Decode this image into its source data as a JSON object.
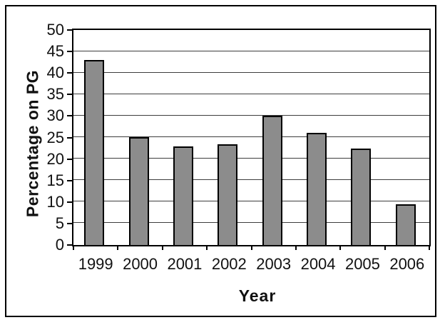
{
  "chart_data": {
    "type": "bar",
    "title": "",
    "xlabel": "Year",
    "ylabel": "Percentage on PG",
    "categories": [
      "1999",
      "2000",
      "2001",
      "2002",
      "2003",
      "2004",
      "2005",
      "2006"
    ],
    "values": [
      43,
      25,
      23,
      23.5,
      30,
      26,
      22.5,
      9.5
    ],
    "ylim": [
      0,
      50
    ],
    "ytick_step": 5,
    "grid": "horizontal",
    "legend_position": "none",
    "colors": {
      "bar_fill": "#8c8c8c",
      "bar_border": "#000000",
      "gridline": "#3d3d3d",
      "axis": "#000000",
      "frame": "#000000",
      "text": "#111111",
      "background": "#ffffff"
    }
  }
}
